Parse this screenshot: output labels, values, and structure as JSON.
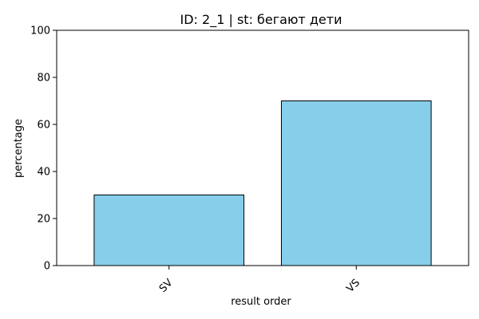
{
  "chart_data": {
    "type": "bar",
    "title": "ID: 2_1 | st: бегают дети",
    "xlabel": "result order",
    "ylabel": "percentage",
    "categories": [
      "SV",
      "VS"
    ],
    "values": [
      30,
      70
    ],
    "ylim": [
      0,
      100
    ],
    "yticks": [
      0,
      20,
      40,
      60,
      80,
      100
    ],
    "bar_color": "#87CEEB",
    "edge_color": "#000000",
    "grid": false,
    "legend": false
  }
}
